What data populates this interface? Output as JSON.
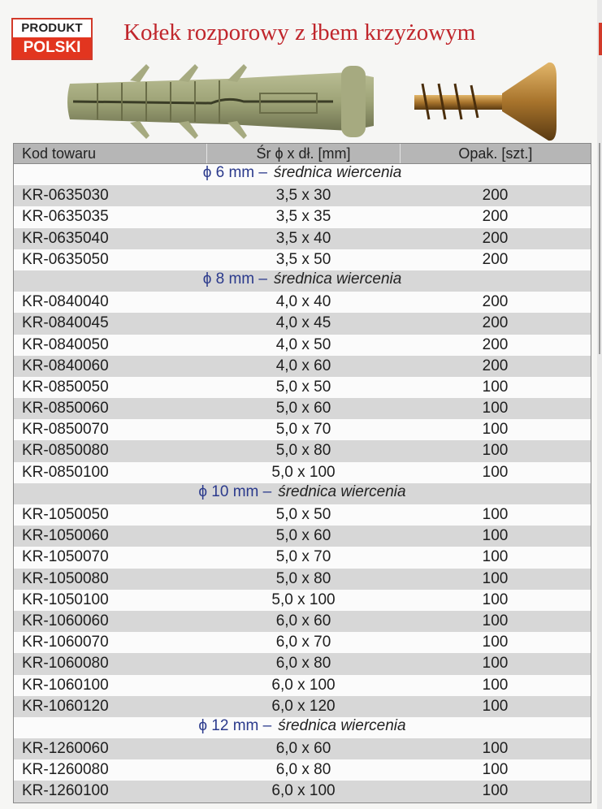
{
  "badge": {
    "top": "PRODUKT",
    "bottom": "POLSKI"
  },
  "title": "Kołek rozporowy z łbem krzyżowym",
  "colors": {
    "title": "#c0262c",
    "badge_red": "#e2351f",
    "group_diameter": "#2b3a8c",
    "header_bg": "#b6b6b6",
    "row_alt": "#d7d7d7"
  },
  "table": {
    "headers": [
      "Kod towaru",
      "Śr ϕ x dł. [mm]",
      "Opak. [szt.]"
    ],
    "groups": [
      {
        "label": "ϕ 6 mm –",
        "desc": "średnica wiercenia",
        "rows": [
          [
            "KR-0635030",
            "3,5 x 30",
            "200"
          ],
          [
            "KR-0635035",
            "3,5 x 35",
            "200"
          ],
          [
            "KR-0635040",
            "3,5 x 40",
            "200"
          ],
          [
            "KR-0635050",
            "3,5 x 50",
            "200"
          ]
        ]
      },
      {
        "label": "ϕ 8 mm –",
        "desc": "średnica wiercenia",
        "rows": [
          [
            "KR-0840040",
            "4,0 x 40",
            "200"
          ],
          [
            "KR-0840045",
            "4,0 x 45",
            "200"
          ],
          [
            "KR-0840050",
            "4,0 x 50",
            "200"
          ],
          [
            "KR-0840060",
            "4,0 x 60",
            "200"
          ],
          [
            "KR-0850050",
            "5,0 x 50",
            "100"
          ],
          [
            "KR-0850060",
            "5,0 x 60",
            "100"
          ],
          [
            "KR-0850070",
            "5,0 x 70",
            "100"
          ],
          [
            "KR-0850080",
            "5,0 x 80",
            "100"
          ],
          [
            "KR-0850100",
            "5,0 x 100",
            "100"
          ]
        ]
      },
      {
        "label": "ϕ 10 mm –",
        "desc": "średnica wiercenia",
        "rows": [
          [
            "KR-1050050",
            "5,0 x 50",
            "100"
          ],
          [
            "KR-1050060",
            "5,0 x 60",
            "100"
          ],
          [
            "KR-1050070",
            "5,0 x 70",
            "100"
          ],
          [
            "KR-1050080",
            "5,0 x 80",
            "100"
          ],
          [
            "KR-1050100",
            "5,0 x 100",
            "100"
          ],
          [
            "KR-1060060",
            "6,0 x 60",
            "100"
          ],
          [
            "KR-1060070",
            "6,0 x 70",
            "100"
          ],
          [
            "KR-1060080",
            "6,0 x 80",
            "100"
          ],
          [
            "KR-1060100",
            "6,0 x 100",
            "100"
          ],
          [
            "KR-1060120",
            "6,0 x 120",
            "100"
          ]
        ]
      },
      {
        "label": "ϕ 12 mm –",
        "desc": "średnica wiercenia",
        "rows": [
          [
            "KR-1260060",
            "6,0 x 60",
            "100"
          ],
          [
            "KR-1260080",
            "6,0 x 80",
            "100"
          ],
          [
            "KR-1260100",
            "6,0 x 100",
            "100"
          ]
        ]
      }
    ]
  }
}
